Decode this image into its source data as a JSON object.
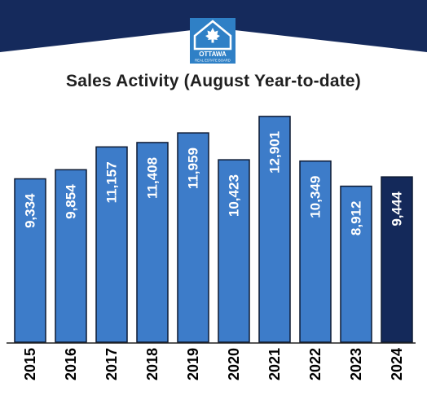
{
  "header": {
    "logo_text": "OTTAWA",
    "logo_subtext": "REAL ESTATE BOARD"
  },
  "colors": {
    "banner": "#152a5c",
    "bar": "#3d7cc9",
    "bar_highlight": "#14295a",
    "bar_border": "#0d1a33",
    "logo_bg": "#2f80c6"
  },
  "icons": [
    "maple-leaf-house-logo"
  ],
  "chart_data": {
    "type": "bar",
    "title": "Sales Activity (August Year-to-date)",
    "xlabel": "",
    "ylabel": "",
    "categories": [
      "2015",
      "2016",
      "2017",
      "2018",
      "2019",
      "2020",
      "2021",
      "2022",
      "2023",
      "2024"
    ],
    "values": [
      9334,
      9854,
      11157,
      11408,
      11959,
      10423,
      12901,
      10349,
      8912,
      9444
    ],
    "value_labels": [
      "9,334",
      "9,854",
      "11,157",
      "11,408",
      "11,959",
      "10,423",
      "12,901",
      "10,349",
      "8,912",
      "9,444"
    ],
    "highlight_index": 9,
    "ylim": [
      0,
      13500
    ],
    "grid": false,
    "legend": "none"
  }
}
